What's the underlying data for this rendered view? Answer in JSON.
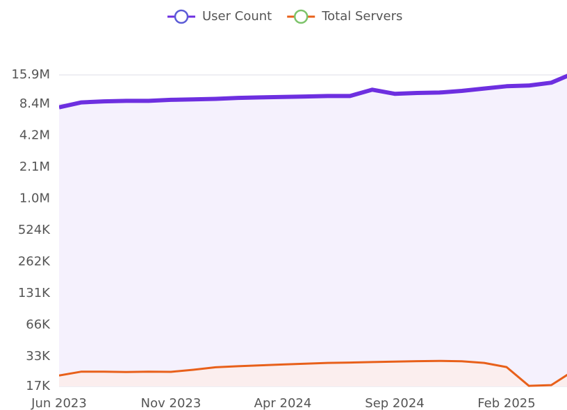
{
  "chart_data": {
    "type": "line",
    "categories": [
      "Jun 2023",
      null,
      null,
      null,
      null,
      "Nov 2023",
      null,
      null,
      null,
      null,
      "Apr 2024",
      null,
      null,
      null,
      null,
      "Sep 2024",
      null,
      null,
      null,
      null,
      "Feb 2025",
      null,
      null,
      null
    ],
    "series": [
      {
        "name": "User Count",
        "color": "#6d2fe0",
        "marker_color": "#5b5bd6",
        "fill": "#f5f1fd",
        "values": [
          7800000,
          8700000,
          8900000,
          9000000,
          9000000,
          9200000,
          9300000,
          9400000,
          9600000,
          9700000,
          9800000,
          9900000,
          10000000,
          10000000,
          11500000,
          10500000,
          10700000,
          10800000,
          11200000,
          11800000,
          12400000,
          12600000,
          13400000,
          16500000
        ]
      },
      {
        "name": "Total Servers",
        "color": "#e8601a",
        "marker_color": "#7cc36a",
        "fill": "#fbeeee",
        "values": [
          21600,
          23500,
          23500,
          23300,
          23500,
          23400,
          24500,
          25900,
          26500,
          27000,
          27500,
          28000,
          28500,
          28700,
          29000,
          29300,
          29600,
          29800,
          29500,
          28500,
          26000,
          17200,
          17500,
          24000
        ]
      }
    ],
    "log_scale": true,
    "grid": true,
    "ylim": [
      17000,
      15900000
    ],
    "yticks": [
      {
        "value": 17000,
        "label": "17K"
      },
      {
        "value": 32768,
        "label": "33K"
      },
      {
        "value": 65536,
        "label": "66K"
      },
      {
        "value": 131072,
        "label": "131K"
      },
      {
        "value": 262144,
        "label": "262K"
      },
      {
        "value": 524288,
        "label": "524K"
      },
      {
        "value": 1048576,
        "label": "1.0M"
      },
      {
        "value": 2097152,
        "label": "2.1M"
      },
      {
        "value": 4194304,
        "label": "4.2M"
      },
      {
        "value": 8388608,
        "label": "8.4M"
      },
      {
        "value": 15900000,
        "label": "15.9M"
      }
    ]
  }
}
